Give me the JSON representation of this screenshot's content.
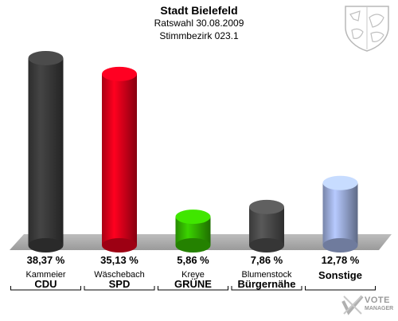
{
  "header": {
    "title": "Stadt Bielefeld",
    "subtitle1": "Ratswahl 30.08.2009",
    "subtitle2": "Stimmbezirk 023.1"
  },
  "chart_data": {
    "type": "bar",
    "title": "Stadt Bielefeld",
    "subtitle": "Ratswahl 30.08.2009 Stimmbezirk 023.1",
    "xlabel": "",
    "ylabel": "",
    "ylim": [
      0,
      40
    ],
    "grid": false,
    "categories": [
      "CDU",
      "SPD",
      "GRÜNE",
      "Bürgernähe",
      "Sonstige"
    ],
    "candidates": [
      "Kammeier",
      "Wäschebach",
      "Kreye",
      "Blumenstock",
      ""
    ],
    "values": [
      38.37,
      35.13,
      5.86,
      7.86,
      12.78
    ],
    "value_labels": [
      "38,37 %",
      "35,13 %",
      "5,86 %",
      "7,86 %",
      "12,78 %"
    ],
    "colors": [
      "#3c3c3c",
      "#e0001b",
      "#33b800",
      "#4d4d4d",
      "#9fb0e0"
    ]
  },
  "watermark": {
    "line1": "VOTE",
    "line2": "MANAGER"
  }
}
